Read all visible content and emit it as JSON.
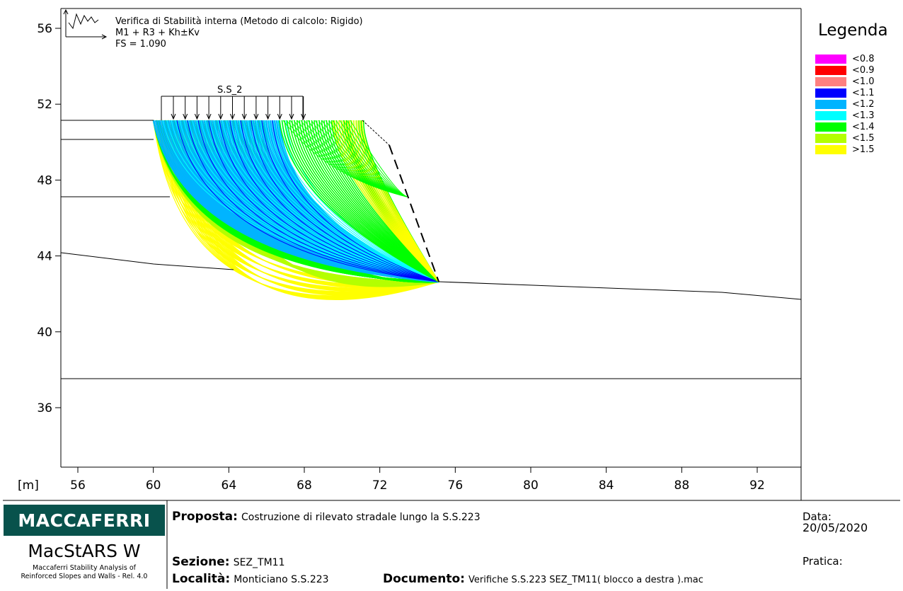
{
  "header": {
    "title": "Verifica di Stabilità interna (Metodo di calcolo: Rigido)",
    "combination": "M1 + R3 + Kh±Kv",
    "fs": "FS = 1.090"
  },
  "load_label": "S.S_2",
  "axes": {
    "unit_label": "[m]",
    "x_ticks": [
      "56",
      "60",
      "64",
      "68",
      "72",
      "76",
      "80",
      "84",
      "88",
      "92"
    ],
    "y_ticks": [
      "56",
      "52",
      "48",
      "44",
      "40",
      "36"
    ]
  },
  "legend": {
    "title": "Legenda",
    "items": [
      {
        "label": "<0.8",
        "color": "#ff00ff"
      },
      {
        "label": "<0.9",
        "color": "#ff0000"
      },
      {
        "label": "<1.0",
        "color": "#ff8080"
      },
      {
        "label": "<1.1",
        "color": "#0000ff"
      },
      {
        "label": "<1.2",
        "color": "#00b4ff"
      },
      {
        "label": "<1.3",
        "color": "#00ffff"
      },
      {
        "label": "<1.4",
        "color": "#00ff00"
      },
      {
        "label": "<1.5",
        "color": "#b4ff00"
      },
      {
        "label": ">1.5",
        "color": "#ffff00"
      }
    ]
  },
  "footer": {
    "logo_text": "MACCAFERRI",
    "app_name": "MacStARS W",
    "app_subtitle_1": "Maccaferri Stability Analysis of",
    "app_subtitle_2": "Reinforced Slopes and Walls - Rel. 4.0",
    "proposta_label": "Proposta:",
    "proposta_value": "Costruzione di rilevato stradale lungo la S.S.223",
    "sezione_label": "Sezione:",
    "sezione_value": "SEZ_TM11",
    "localita_label": "Località:",
    "localita_value": "Monticiano S.S.223",
    "documento_label": "Documento:",
    "documento_value": "Verifiche S.S.223 SEZ_TM11( blocco a destra ).mac",
    "data_label": "Data:",
    "data_value": "20/05/2020",
    "pratica_label": "Pratica:"
  },
  "colors": {
    "logo_bg": "#08524c"
  }
}
